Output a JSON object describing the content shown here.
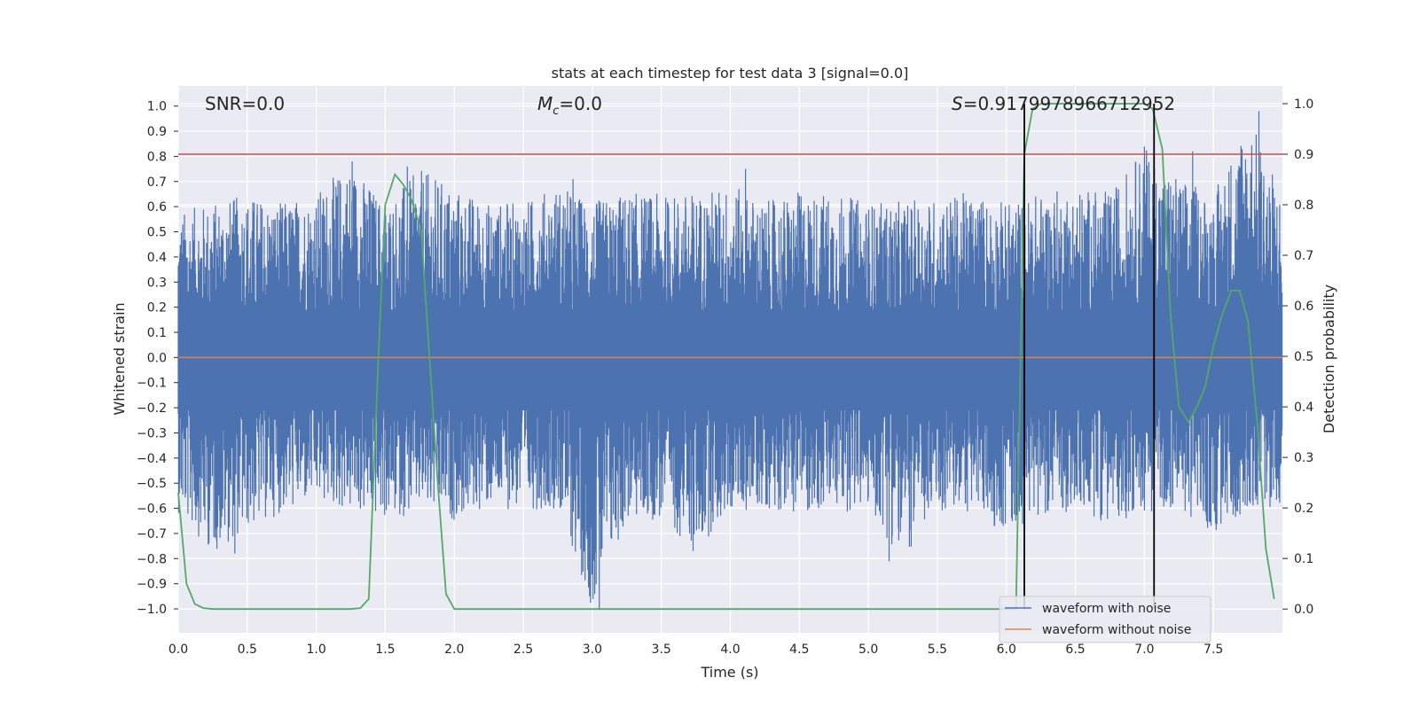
{
  "chart_data": {
    "type": "line",
    "title": "stats at each timestep for test data 3 [signal=0.0]",
    "xlabel": "Time (s)",
    "ylabel": "Whitened strain",
    "y2label": "Detection probability",
    "xlim": [
      0.0,
      8.0
    ],
    "ylim": [
      -1.095,
      1.08
    ],
    "y2lim": [
      -0.047,
      1.035
    ],
    "xticks": [
      "0.0",
      "0.5",
      "1.0",
      "1.5",
      "2.0",
      "2.5",
      "3.0",
      "3.5",
      "4.0",
      "4.5",
      "5.0",
      "5.5",
      "6.0",
      "6.5",
      "7.0",
      "7.5"
    ],
    "yticks": [
      "1.0",
      "0.9",
      "0.8",
      "0.7",
      "0.6",
      "0.5",
      "0.4",
      "0.3",
      "0.2",
      "0.1",
      "0.0",
      "-0.1",
      "-0.2",
      "-0.3",
      "-0.4",
      "-0.5",
      "-0.6",
      "-0.7",
      "-0.8",
      "-0.9",
      "-1.0"
    ],
    "y2ticks": [
      "0.0",
      "0.1",
      "0.2",
      "0.3",
      "0.4",
      "0.5",
      "0.6",
      "0.7",
      "0.8",
      "0.9",
      "1.0"
    ],
    "annotations": {
      "snr": "SNR=0.0",
      "mc_symbol": "M",
      "mc_sub": "c",
      "mc_value": "=0.0",
      "s_symbol": "S",
      "s_value": "=0.9179978966712952"
    },
    "threshold": {
      "name": "detection threshold",
      "value_prob": 0.9,
      "color": "#c44e52"
    },
    "event_lines": {
      "x": [
        6.13,
        7.07
      ],
      "color": "#000000"
    },
    "series": [
      {
        "name": "waveform with noise",
        "color": "#4c72b0",
        "description": "whitened noisy strain, envelope sampled per 0.25 s",
        "envelope_t": [
          0.0,
          0.25,
          0.5,
          0.75,
          1.0,
          1.25,
          1.5,
          1.75,
          2.0,
          2.25,
          2.5,
          2.75,
          3.0,
          3.25,
          3.5,
          3.75,
          4.0,
          4.25,
          4.5,
          4.75,
          5.0,
          5.25,
          5.5,
          5.75,
          6.0,
          6.25,
          6.5,
          6.75,
          7.0,
          7.25,
          7.5,
          7.75,
          8.0
        ],
        "envelope_max": [
          0.58,
          0.62,
          0.65,
          0.62,
          0.66,
          0.78,
          0.62,
          0.75,
          0.68,
          0.62,
          0.62,
          0.69,
          0.62,
          0.66,
          0.65,
          0.66,
          0.69,
          0.62,
          0.66,
          0.66,
          0.62,
          0.62,
          0.64,
          0.66,
          0.62,
          0.66,
          0.68,
          0.66,
          0.84,
          0.72,
          0.65,
          0.98,
          0.65
        ],
        "envelope_min": [
          -0.62,
          -0.78,
          -0.69,
          -0.62,
          -0.58,
          -0.62,
          -0.65,
          -0.62,
          -0.65,
          -0.6,
          -0.61,
          -0.6,
          -1.0,
          -0.66,
          -0.65,
          -0.77,
          -0.62,
          -0.6,
          -0.62,
          -0.62,
          -0.61,
          -0.81,
          -0.62,
          -0.62,
          -0.7,
          -0.62,
          -0.62,
          -0.66,
          -0.62,
          -0.6,
          -0.72,
          -0.6,
          -0.6
        ],
        "spikes": [
          [
            1.26,
            0.78
          ],
          [
            1.66,
            0.76
          ],
          [
            3.05,
            -1.0
          ],
          [
            3.73,
            -0.77
          ],
          [
            5.15,
            -0.81
          ],
          [
            7.0,
            0.84
          ],
          [
            7.35,
            0.82
          ],
          [
            7.83,
            0.98
          ],
          [
            0.41,
            -0.78
          ],
          [
            2.86,
            0.71
          ],
          [
            4.11,
            0.75
          ]
        ]
      },
      {
        "name": "waveform without noise",
        "color": "#dd8452",
        "x": [
          0.0,
          8.0
        ],
        "y": [
          0.0,
          0.0
        ]
      },
      {
        "name": "detection probability",
        "color": "#55a868",
        "axis": "right",
        "x": [
          0.0,
          0.06,
          0.12,
          0.18,
          0.25,
          0.5,
          1.0,
          1.25,
          1.32,
          1.38,
          1.45,
          1.5,
          1.57,
          1.63,
          1.69,
          1.76,
          1.82,
          1.88,
          1.94,
          2.0,
          2.5,
          3.0,
          4.0,
          5.0,
          6.0,
          6.07,
          6.13,
          6.19,
          6.25,
          6.5,
          7.0,
          7.06,
          7.13,
          7.19,
          7.25,
          7.32,
          7.38,
          7.44,
          7.5,
          7.56,
          7.63,
          7.69,
          7.75,
          7.82,
          7.88,
          7.94
        ],
        "y": [
          0.23,
          0.05,
          0.01,
          0.002,
          0.0,
          0.0,
          0.0,
          0.0,
          0.002,
          0.02,
          0.5,
          0.8,
          0.86,
          0.84,
          0.81,
          0.75,
          0.5,
          0.25,
          0.03,
          0.0,
          0.0,
          0.0,
          0.0,
          0.0,
          0.0,
          0.0,
          0.9,
          0.99,
          1.0,
          1.0,
          1.0,
          0.99,
          0.91,
          0.58,
          0.4,
          0.37,
          0.4,
          0.44,
          0.52,
          0.58,
          0.63,
          0.63,
          0.57,
          0.36,
          0.12,
          0.02
        ]
      }
    ],
    "legend": {
      "placement": "lower-right",
      "entries": [
        "waveform with noise",
        "waveform without noise"
      ]
    },
    "grid": true,
    "background": "#eaeaf2"
  }
}
